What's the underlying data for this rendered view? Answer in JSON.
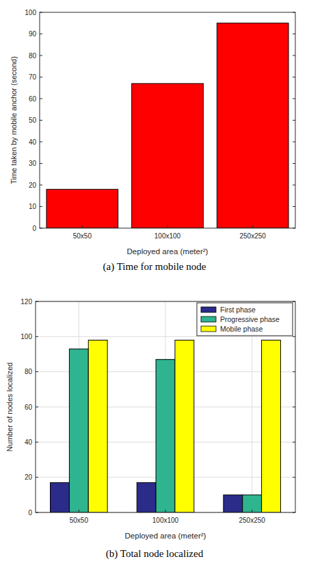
{
  "chart_data": [
    {
      "type": "bar",
      "title": "(a) Time for mobile node",
      "x_label": "Deployed area (meter²)",
      "y_label": "Time taken by mobile anchor (second)",
      "categories": [
        "50x50",
        "100x100",
        "250x250"
      ],
      "values": [
        18,
        67,
        95
      ],
      "color": "#ff0000",
      "ylim": [
        0,
        100
      ],
      "yticks": [
        0,
        10,
        20,
        30,
        40,
        50,
        60,
        70,
        80,
        90,
        100
      ],
      "grid": false
    },
    {
      "type": "bar",
      "title": "(b) Total node localized",
      "x_label": "Deployed area (meter²)",
      "y_label": "Number of nodes localized",
      "categories": [
        "50x50",
        "100x100",
        "250x250"
      ],
      "series": [
        {
          "name": "First phase",
          "color": "#2b2b8a",
          "values": [
            17,
            17,
            10
          ]
        },
        {
          "name": "Progressive phase",
          "color": "#2eb48e",
          "values": [
            93,
            87,
            10
          ]
        },
        {
          "name": "Mobile phase",
          "color": "#ffff00",
          "values": [
            98,
            98,
            98
          ]
        }
      ],
      "ylim": [
        0,
        120
      ],
      "yticks": [
        0,
        20,
        40,
        60,
        80,
        100,
        120
      ],
      "grid": true,
      "legend": "upper right"
    }
  ]
}
